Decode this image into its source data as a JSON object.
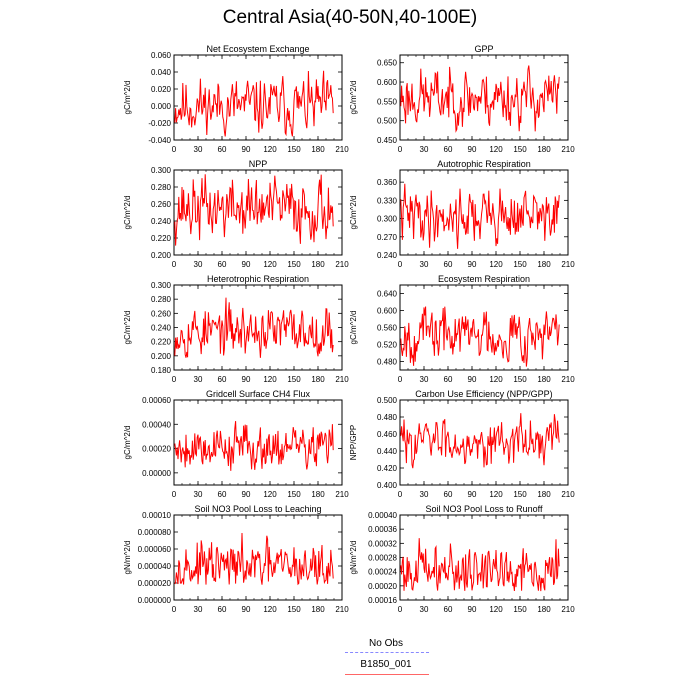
{
  "title": "Central Asia(40-50N,40-100E)",
  "legend": {
    "entries": [
      {
        "label": "No Obs",
        "color": "#8888ff",
        "style": "dashed"
      },
      {
        "label": "B1850_001",
        "color": "#ff6666",
        "style": "solid"
      }
    ]
  },
  "series_color": "#ff0000",
  "chart_data": [
    {
      "type": "line",
      "title": "Net Ecosystem Exchange",
      "ylabel": "gC/m^2/d",
      "xlabel": "",
      "xlim": [
        0,
        210
      ],
      "ylim": [
        -0.04,
        0.06
      ],
      "xticks": [
        "0",
        "30",
        "60",
        "90",
        "120",
        "150",
        "180",
        "210"
      ],
      "yticks": [
        "-0.040",
        "-0.020",
        "0.000",
        "0.020",
        "0.040",
        "0.060"
      ],
      "series": [
        {
          "name": "B1850_001",
          "x_start": 1,
          "x_end": 199,
          "mean": 0.0,
          "range": [
            -0.036,
            0.05
          ],
          "seed": 11
        }
      ]
    },
    {
      "type": "line",
      "title": "GPP",
      "ylabel": "gC/m^2/d",
      "xlabel": "",
      "xlim": [
        0,
        210
      ],
      "ylim": [
        0.45,
        0.67
      ],
      "xticks": [
        "0",
        "30",
        "60",
        "90",
        "120",
        "150",
        "180",
        "210"
      ],
      "yticks": [
        "0.450",
        "0.500",
        "0.550",
        "0.600",
        "0.650"
      ],
      "series": [
        {
          "name": "B1850_001",
          "x_start": 1,
          "x_end": 199,
          "mean": 0.56,
          "range": [
            0.47,
            0.665
          ],
          "seed": 23
        }
      ]
    },
    {
      "type": "line",
      "title": "NPP",
      "ylabel": "gC/m^2/d",
      "xlabel": "",
      "xlim": [
        0,
        210
      ],
      "ylim": [
        0.2,
        0.3
      ],
      "xticks": [
        "0",
        "30",
        "60",
        "90",
        "120",
        "150",
        "180",
        "210"
      ],
      "yticks": [
        "0.200",
        "0.220",
        "0.240",
        "0.260",
        "0.280",
        "0.300"
      ],
      "series": [
        {
          "name": "B1850_001",
          "x_start": 1,
          "x_end": 199,
          "mean": 0.255,
          "range": [
            0.205,
            0.3
          ],
          "seed": 37
        }
      ]
    },
    {
      "type": "line",
      "title": "Autotrophic Respiration",
      "ylabel": "gC/m^2/d",
      "xlabel": "",
      "xlim": [
        0,
        210
      ],
      "ylim": [
        0.24,
        0.38
      ],
      "xticks": [
        "0",
        "30",
        "60",
        "90",
        "120",
        "150",
        "180",
        "210"
      ],
      "yticks": [
        "0.240",
        "0.270",
        "0.300",
        "0.330",
        "0.360"
      ],
      "series": [
        {
          "name": "B1850_001",
          "x_start": 1,
          "x_end": 199,
          "mean": 0.305,
          "range": [
            0.25,
            0.368
          ],
          "seed": 41
        }
      ]
    },
    {
      "type": "line",
      "title": "Heterotrophic Respiration",
      "ylabel": "gC/m^2/d",
      "xlabel": "",
      "xlim": [
        0,
        210
      ],
      "ylim": [
        0.18,
        0.3
      ],
      "xticks": [
        "0",
        "30",
        "60",
        "90",
        "120",
        "150",
        "180",
        "210"
      ],
      "yticks": [
        "0.180",
        "0.200",
        "0.220",
        "0.240",
        "0.260",
        "0.280",
        "0.300"
      ],
      "series": [
        {
          "name": "B1850_001",
          "x_start": 1,
          "x_end": 199,
          "mean": 0.235,
          "range": [
            0.197,
            0.29
          ],
          "seed": 53
        }
      ]
    },
    {
      "type": "line",
      "title": "Ecosystem Respiration",
      "ylabel": "gC/m^2/d",
      "xlabel": "",
      "xlim": [
        0,
        210
      ],
      "ylim": [
        0.46,
        0.66
      ],
      "xticks": [
        "0",
        "30",
        "60",
        "90",
        "120",
        "150",
        "180",
        "210"
      ],
      "yticks": [
        "0.480",
        "0.520",
        "0.560",
        "0.600",
        "0.640"
      ],
      "series": [
        {
          "name": "B1850_001",
          "x_start": 1,
          "x_end": 199,
          "mean": 0.545,
          "range": [
            0.468,
            0.63
          ],
          "seed": 67
        }
      ]
    },
    {
      "type": "line",
      "title": "Gridcell Surface CH4 Flux",
      "ylabel": "gC/m^2/d",
      "xlabel": "",
      "xlim": [
        0,
        210
      ],
      "ylim": [
        -0.0001,
        0.0006
      ],
      "xticks": [
        "0",
        "30",
        "60",
        "90",
        "120",
        "150",
        "180",
        "210"
      ],
      "yticks": [
        "0.00000",
        "0.00020",
        "0.00040",
        "0.00060"
      ],
      "series": [
        {
          "name": "B1850_001",
          "x_start": 1,
          "x_end": 199,
          "mean": 0.00022,
          "range": [
            1e-05,
            0.0005
          ],
          "seed": 79
        }
      ]
    },
    {
      "type": "line",
      "title": "Carbon Use Efficiency (NPP/GPP)",
      "ylabel": "NPP/GPP",
      "xlabel": "",
      "xlim": [
        0,
        210
      ],
      "ylim": [
        0.4,
        0.5
      ],
      "xticks": [
        "0",
        "30",
        "60",
        "90",
        "120",
        "150",
        "180",
        "210"
      ],
      "yticks": [
        "0.400",
        "0.420",
        "0.440",
        "0.460",
        "0.480",
        "0.500"
      ],
      "series": [
        {
          "name": "B1850_001",
          "x_start": 1,
          "x_end": 199,
          "mean": 0.452,
          "range": [
            0.418,
            0.486
          ],
          "seed": 83
        }
      ]
    },
    {
      "type": "line",
      "title": "Soil NO3 Pool Loss to Leaching",
      "ylabel": "gN/m^2/d",
      "xlabel": "",
      "xlim": [
        0,
        210
      ],
      "ylim": [
        0.0,
        0.0001
      ],
      "xticks": [
        "0",
        "30",
        "60",
        "90",
        "120",
        "150",
        "180",
        "210"
      ],
      "yticks": [
        "0.000000",
        "0.000020",
        "0.000040",
        "0.000060",
        "0.000080",
        "0.00010"
      ],
      "series": [
        {
          "name": "B1850_001",
          "x_start": 1,
          "x_end": 199,
          "mean": 3.8e-05,
          "range": [
            1.8e-05,
            9.2e-05
          ],
          "seed": 97
        }
      ]
    },
    {
      "type": "line",
      "title": "Soil NO3 Pool Loss to Runoff",
      "ylabel": "gN/m^2/d",
      "xlabel": "",
      "xlim": [
        0,
        210
      ],
      "ylim": [
        0.00016,
        0.0004
      ],
      "xticks": [
        "0",
        "30",
        "60",
        "90",
        "120",
        "150",
        "180",
        "210"
      ],
      "yticks": [
        "0.00016",
        "0.00020",
        "0.00024",
        "0.00028",
        "0.00032",
        "0.00036",
        "0.00040"
      ],
      "series": [
        {
          "name": "B1850_001",
          "x_start": 1,
          "x_end": 199,
          "mean": 0.000245,
          "range": [
            0.000185,
            0.000375
          ],
          "seed": 101
        }
      ]
    }
  ]
}
